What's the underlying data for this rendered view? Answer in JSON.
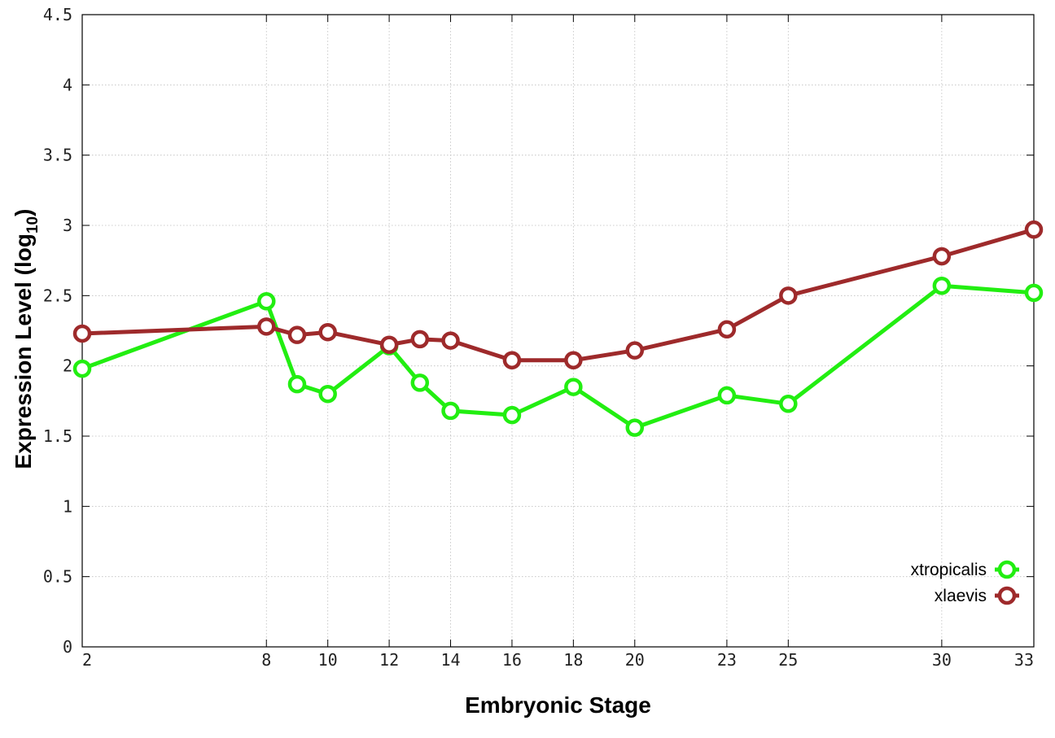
{
  "chart_data": {
    "type": "line",
    "title": "",
    "xlabel": "Embryonic Stage",
    "ylabel_main": "Expression Level (log",
    "ylabel_sub": "10",
    "ylabel_close": ")",
    "x": [
      2,
      8,
      9,
      10,
      12,
      13,
      14,
      16,
      18,
      20,
      23,
      25,
      30,
      33
    ],
    "x_ticks": [
      2,
      8,
      10,
      12,
      14,
      16,
      18,
      20,
      23,
      25,
      30,
      33
    ],
    "y_ticks": [
      "0",
      "0.5",
      "1",
      "1.5",
      "2",
      "2.5",
      "3",
      "3.5",
      "4",
      "4.5"
    ],
    "xlim": [
      2,
      33
    ],
    "ylim": [
      0,
      4.5
    ],
    "grid": true,
    "legend_position": "bottom-right",
    "series": [
      {
        "name": "xtropicalis",
        "color": "#22ee11",
        "values": [
          1.98,
          2.46,
          1.87,
          1.8,
          2.14,
          1.88,
          1.68,
          1.65,
          1.85,
          1.56,
          1.79,
          1.73,
          2.57,
          2.52
        ]
      },
      {
        "name": "xlaevis",
        "color": "#9e2a2b",
        "values": [
          2.23,
          2.28,
          2.22,
          2.24,
          2.15,
          2.19,
          2.18,
          2.04,
          2.04,
          2.11,
          2.26,
          2.5,
          2.78,
          2.97
        ]
      }
    ]
  }
}
